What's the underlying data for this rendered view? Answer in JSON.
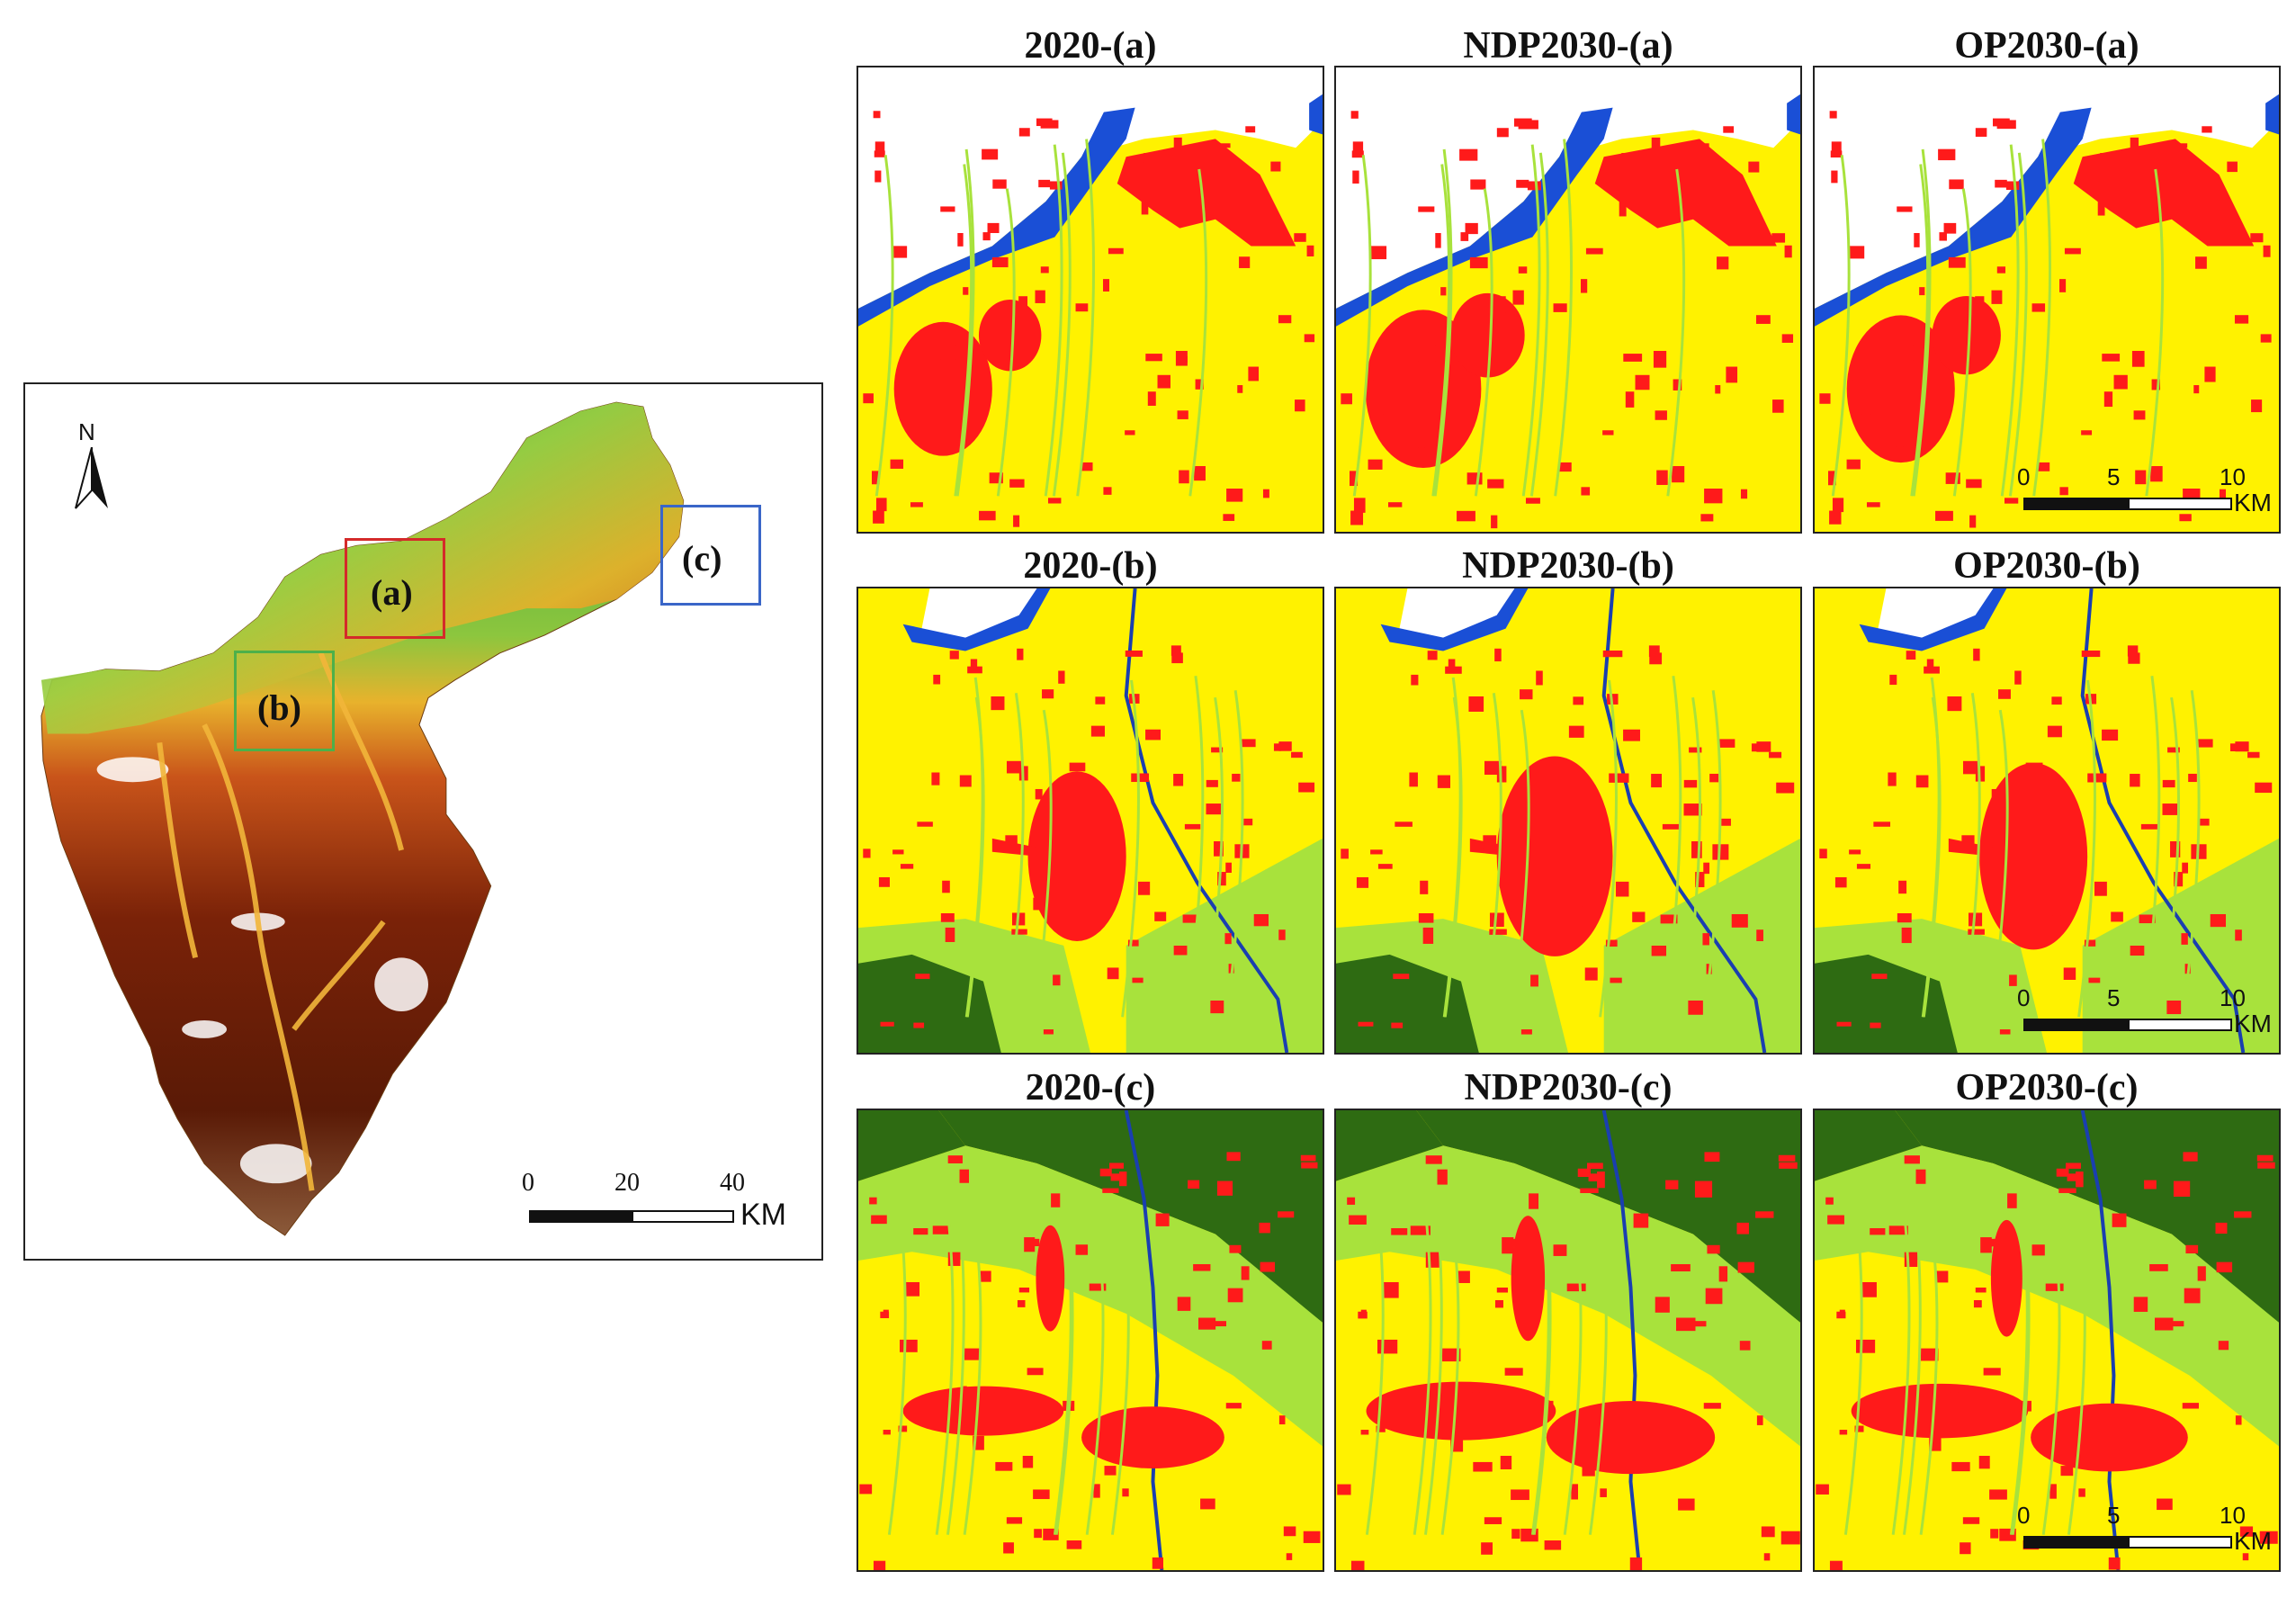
{
  "overview": {
    "north_label": "N",
    "boxes": [
      {
        "label": "(a)",
        "color": "#d42a2a"
      },
      {
        "label": "(b)",
        "color": "#4db04a"
      },
      {
        "label": "(c)",
        "color": "#3a66c8"
      }
    ],
    "scale": {
      "ticks": [
        "0",
        "20",
        "40"
      ],
      "unit": "KM"
    }
  },
  "panel_scale": {
    "ticks": [
      "0",
      "5",
      "10"
    ],
    "unit": "KM"
  },
  "columns": [
    "2020",
    "NDP2030",
    "OP2030"
  ],
  "rows": [
    "(a)",
    "(b)",
    "(c)"
  ],
  "panels": [
    {
      "title": "2020-(a)"
    },
    {
      "title": "NDP2030-(a)"
    },
    {
      "title": "OP2030-(a)"
    },
    {
      "title": "2020-(b)"
    },
    {
      "title": "NDP2030-(b)"
    },
    {
      "title": "OP2030-(b)"
    },
    {
      "title": "2020-(c)"
    },
    {
      "title": "NDP2030-(c)"
    },
    {
      "title": "OP2030-(c)"
    }
  ],
  "land_use_colors": {
    "cropland": "#fff200",
    "construction": "#ff1a1a",
    "water": "#1a4fd6",
    "grassland": "#a8e23c",
    "forest": "#2e6b12"
  },
  "dem_colors": [
    "#2f9e3c",
    "#8cc63e",
    "#e8b22c",
    "#d26a1a",
    "#8b2a0c",
    "#5a1a06",
    "#ffffff"
  ]
}
